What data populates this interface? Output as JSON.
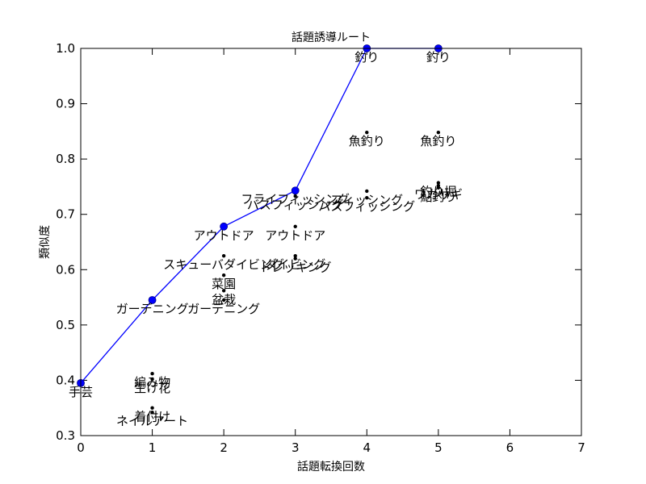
{
  "chart_data": {
    "type": "scatter",
    "title": "話題誘導ルート",
    "xlabel": "話題転換回数",
    "ylabel": "類似度",
    "xlim": [
      0,
      7
    ],
    "ylim": [
      0.3,
      1.0
    ],
    "xticks": [
      "0",
      "1",
      "2",
      "3",
      "4",
      "5",
      "6",
      "7"
    ],
    "yticks": [
      "0.3",
      "0.4",
      "0.5",
      "0.6",
      "0.7",
      "0.8",
      "0.9",
      "1.0"
    ],
    "grid": false,
    "route": {
      "x": [
        0,
        1,
        2,
        3,
        4,
        5
      ],
      "y": [
        0.395,
        0.545,
        0.678,
        0.743,
        1.0,
        1.0
      ],
      "color": "#0000ff"
    },
    "candidates": [
      {
        "x": 0,
        "y": 0.395,
        "label": "手芸"
      },
      {
        "x": 1,
        "y": 0.545,
        "label": "ガーデニング"
      },
      {
        "x": 1,
        "y": 0.412,
        "label": "編み物"
      },
      {
        "x": 1,
        "y": 0.402,
        "label": "生け花"
      },
      {
        "x": 1,
        "y": 0.35,
        "label": "着付け"
      },
      {
        "x": 1,
        "y": 0.342,
        "label": "ネイルアート"
      },
      {
        "x": 2,
        "y": 0.678,
        "label": "アウトドア"
      },
      {
        "x": 2,
        "y": 0.625,
        "label": "スキューバダイビング"
      },
      {
        "x": 2,
        "y": 0.59,
        "label": "菜園"
      },
      {
        "x": 2,
        "y": 0.562,
        "label": "盆栽"
      },
      {
        "x": 2,
        "y": 0.545,
        "label": "ガーデニング"
      },
      {
        "x": 3,
        "y": 0.743,
        "label": "フライフィッシング"
      },
      {
        "x": 3,
        "y": 0.733,
        "label": "バスフィッシング"
      },
      {
        "x": 3,
        "y": 0.678,
        "label": "アウトドア"
      },
      {
        "x": 3,
        "y": 0.625,
        "label": "ダイビング"
      },
      {
        "x": 3,
        "y": 0.62,
        "label": "トレッキング"
      },
      {
        "x": 4,
        "y": 1.0,
        "label": "釣り"
      },
      {
        "x": 4,
        "y": 0.848,
        "label": "魚釣り"
      },
      {
        "x": 4,
        "y": 0.742,
        "label": "フィッシング"
      },
      {
        "x": 4,
        "y": 0.73,
        "label": "バスフィッシング"
      },
      {
        "x": 5,
        "y": 1.0,
        "label": "釣り"
      },
      {
        "x": 5,
        "y": 0.848,
        "label": "魚釣り"
      },
      {
        "x": 5,
        "y": 0.757,
        "label": "釣り堀"
      },
      {
        "x": 5,
        "y": 0.752,
        "label": "ワカサギ"
      },
      {
        "x": 5,
        "y": 0.748,
        "label": "鮎釣り"
      }
    ]
  }
}
